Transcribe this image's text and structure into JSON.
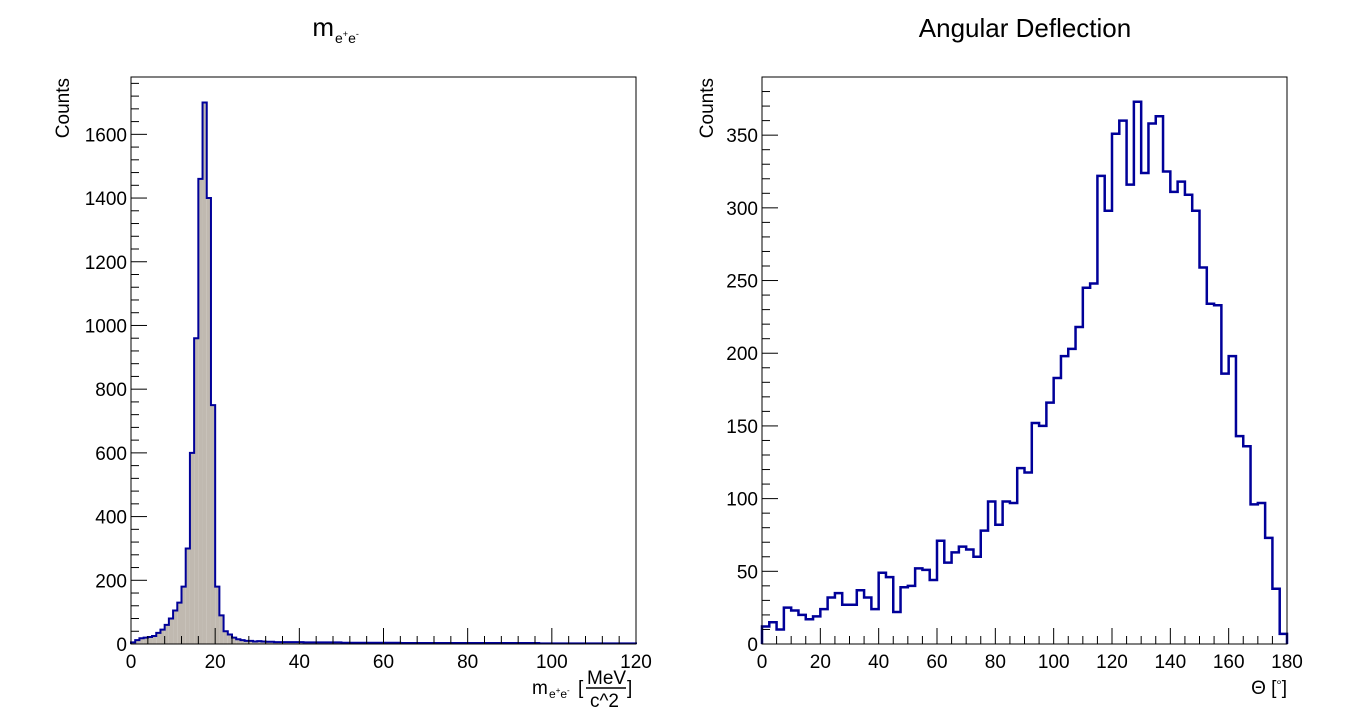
{
  "chart_data": [
    {
      "type": "histogram",
      "title": "m",
      "title_subscript": "e+e-",
      "xlabel": "m",
      "xlabel_subscript": "e+e-",
      "xlabel_units_open": "[",
      "xlabel_units_numerator": "MeV",
      "xlabel_units_denominator": "c^2",
      "xlabel_units_close": "]",
      "ylabel": "Counts",
      "xlim": [
        0,
        120
      ],
      "ylim": [
        0,
        1780
      ],
      "x_ticks": [
        0,
        20,
        40,
        60,
        80,
        100,
        120
      ],
      "y_ticks": [
        0,
        200,
        400,
        600,
        800,
        1000,
        1200,
        1400,
        1600
      ],
      "bin_width": 1,
      "line_color": "#000099",
      "fill_color": "#c0b9b0",
      "x": [
        0,
        1,
        2,
        3,
        4,
        5,
        6,
        7,
        8,
        9,
        10,
        11,
        12,
        13,
        14,
        15,
        16,
        17,
        18,
        19,
        20,
        21,
        22,
        23,
        24,
        25,
        26,
        27,
        28,
        29,
        30,
        31,
        32,
        33,
        34,
        35,
        36,
        37,
        38,
        39,
        40,
        41,
        42,
        43,
        44,
        45,
        46,
        47,
        48,
        49,
        50,
        51,
        52,
        53,
        54,
        55,
        56,
        57,
        58,
        59,
        60,
        61,
        62,
        63,
        64,
        65,
        66,
        67,
        68,
        69,
        70,
        71,
        72,
        73,
        74,
        75,
        76,
        77,
        78,
        79,
        80,
        81,
        82,
        83,
        84,
        85,
        86,
        87,
        88,
        89,
        90,
        91,
        92,
        93,
        94,
        95,
        96,
        97,
        98,
        99,
        100,
        101,
        102,
        103,
        104,
        105,
        106,
        107,
        108,
        109,
        110,
        111,
        112,
        113,
        114,
        115,
        116,
        117,
        118,
        119
      ],
      "counts": [
        5,
        12,
        18,
        20,
        22,
        25,
        35,
        45,
        60,
        80,
        105,
        130,
        180,
        300,
        600,
        960,
        1460,
        1700,
        1400,
        750,
        180,
        90,
        40,
        30,
        20,
        15,
        12,
        10,
        10,
        8,
        9,
        8,
        7,
        7,
        6,
        6,
        6,
        6,
        6,
        6,
        6,
        5,
        5,
        5,
        5,
        5,
        5,
        5,
        5,
        5,
        4,
        4,
        4,
        4,
        4,
        4,
        4,
        4,
        4,
        4,
        4,
        4,
        4,
        4,
        3,
        3,
        3,
        3,
        3,
        3,
        3,
        3,
        3,
        3,
        3,
        3,
        3,
        3,
        3,
        3,
        3,
        3,
        3,
        3,
        3,
        3,
        3,
        3,
        3,
        3,
        3,
        3,
        3,
        3,
        3,
        3,
        3,
        2,
        2,
        2,
        2,
        2,
        2,
        2,
        2,
        2,
        2,
        2,
        2,
        2,
        2,
        2,
        2,
        2,
        2,
        2,
        2,
        2,
        2,
        2
      ]
    },
    {
      "type": "histogram",
      "title": "Angular Deflection",
      "xlabel": "Θ [ ]",
      "xlabel_unit_symbol": "∘",
      "ylabel": "Counts",
      "xlim": [
        0,
        180
      ],
      "ylim": [
        0,
        390
      ],
      "x_ticks": [
        0,
        20,
        40,
        60,
        80,
        100,
        120,
        140,
        160,
        180
      ],
      "y_ticks": [
        0,
        50,
        100,
        150,
        200,
        250,
        300,
        350
      ],
      "bin_width": 2.5,
      "line_color": "#000099",
      "x": [
        0,
        2.5,
        5,
        7.5,
        10,
        12.5,
        15,
        17.5,
        20,
        22.5,
        25,
        27.5,
        30,
        32.5,
        35,
        37.5,
        40,
        42.5,
        45,
        47.5,
        50,
        52.5,
        55,
        57.5,
        60,
        62.5,
        65,
        67.5,
        70,
        72.5,
        75,
        77.5,
        80,
        82.5,
        85,
        87.5,
        90,
        92.5,
        95,
        97.5,
        100,
        102.5,
        105,
        107.5,
        110,
        112.5,
        115,
        117.5,
        120,
        122.5,
        125,
        127.5,
        130,
        132.5,
        135,
        137.5,
        140,
        142.5,
        145,
        147.5,
        150,
        152.5,
        155,
        157.5,
        160,
        162.5,
        165,
        167.5,
        170,
        172.5,
        175,
        177.5
      ],
      "counts": [
        12,
        15,
        10,
        25,
        23,
        20,
        17,
        19,
        24,
        32,
        35,
        27,
        27,
        37,
        32,
        24,
        49,
        46,
        22,
        39,
        40,
        52,
        51,
        44,
        71,
        56,
        63,
        67,
        65,
        60,
        78,
        98,
        82,
        98,
        97,
        121,
        118,
        152,
        150,
        166,
        183,
        198,
        203,
        218,
        245,
        248,
        322,
        298,
        351,
        360,
        316,
        373,
        324,
        358,
        363,
        325,
        311,
        318,
        309,
        298,
        259,
        234,
        233,
        186,
        198,
        143,
        136,
        96,
        97,
        73,
        38,
        7
      ]
    }
  ]
}
